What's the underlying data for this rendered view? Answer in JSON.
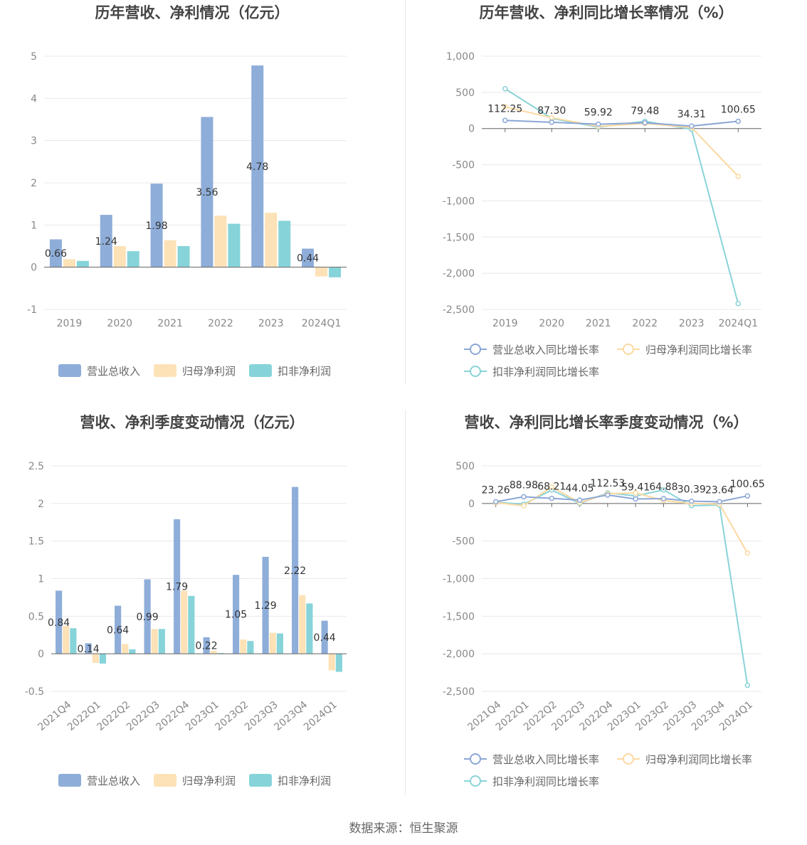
{
  "colors": {
    "revenue": "#8eadd9",
    "net_profit": "#fde2b7",
    "deducted_profit": "#86d4d9",
    "line_revenue": "#8ba7d6",
    "line_net": "#fcd9a1",
    "line_deducted": "#89d3d8"
  },
  "legend": {
    "revenue": "营业总收入",
    "net_profit": "归母净利润",
    "deducted_profit": "扣非净利润",
    "revenue_growth": "营业总收入同比增长率",
    "net_growth": "归母净利润同比增长率",
    "deducted_growth": "扣非净利润同比增长率"
  },
  "source": "数据来源：恒生聚源",
  "chart_data": [
    {
      "type": "bar",
      "title": "历年营收、净利情况（亿元）",
      "categories": [
        "2019",
        "2020",
        "2021",
        "2022",
        "2023",
        "2024Q1"
      ],
      "series": [
        {
          "name": "营业总收入",
          "values": [
            0.66,
            1.24,
            1.98,
            3.56,
            4.78,
            0.44
          ]
        },
        {
          "name": "归母净利润",
          "values": [
            0.19,
            0.5,
            0.64,
            1.22,
            1.29,
            -0.22
          ]
        },
        {
          "name": "扣非净利润",
          "values": [
            0.15,
            0.38,
            0.5,
            1.03,
            1.1,
            -0.24
          ]
        }
      ],
      "data_labels": [
        "0.66",
        "1.24",
        "1.98",
        "3.56",
        "4.78",
        "0.44"
      ],
      "yticks": [
        "5",
        "4",
        "3",
        "2",
        "1",
        "0",
        "-1"
      ],
      "ylim": [
        -1,
        5
      ],
      "grid": true,
      "legend_position": "bottom"
    },
    {
      "type": "line",
      "title": "历年营收、净利同比增长率情况（%）",
      "categories": [
        "2019",
        "2020",
        "2021",
        "2022",
        "2023",
        "2024Q1"
      ],
      "series": [
        {
          "name": "营业总收入同比增长率",
          "values": [
            112.25,
            87.3,
            59.92,
            79.48,
            34.31,
            100.65
          ]
        },
        {
          "name": "归母净利润同比增长率",
          "values": [
            300,
            150,
            30,
            70,
            15,
            -660
          ]
        },
        {
          "name": "扣非净利润同比增长率",
          "values": [
            550,
            140,
            20,
            100,
            -10,
            -2420
          ]
        }
      ],
      "data_labels": [
        "112.25",
        "87.30",
        "59.92",
        "79.48",
        "34.31",
        "100.65"
      ],
      "yticks": [
        "1,000",
        "500",
        "0",
        "-500",
        "-1,000",
        "-1,500",
        "-2,000",
        "-2,500"
      ],
      "ylim": [
        -2500,
        1000
      ],
      "grid": true,
      "legend_position": "bottom"
    },
    {
      "type": "bar",
      "title": "营收、净利季度变动情况（亿元）",
      "categories": [
        "2021Q4",
        "2022Q1",
        "2022Q2",
        "2022Q3",
        "2022Q4",
        "2023Q1",
        "2023Q2",
        "2023Q3",
        "2023Q4",
        "2024Q1"
      ],
      "series": [
        {
          "name": "营业总收入",
          "values": [
            0.84,
            0.14,
            0.64,
            0.99,
            1.79,
            0.22,
            1.05,
            1.29,
            2.22,
            0.44
          ]
        },
        {
          "name": "归母净利润",
          "values": [
            0.37,
            -0.12,
            0.13,
            0.33,
            0.84,
            0.04,
            0.19,
            0.28,
            0.78,
            -0.22
          ]
        },
        {
          "name": "扣非净利润",
          "values": [
            0.34,
            -0.13,
            0.06,
            0.33,
            0.77,
            0.01,
            0.17,
            0.27,
            0.67,
            -0.24
          ]
        }
      ],
      "data_labels": [
        "0.84",
        "0.14",
        "0.64",
        "0.99",
        "1.79",
        "0.22",
        "1.05",
        "1.29",
        "2.22",
        "0.44"
      ],
      "yticks": [
        "2.5",
        "2",
        "1.5",
        "1",
        "0.5",
        "0",
        "-0.5"
      ],
      "ylim": [
        -0.5,
        2.5
      ],
      "grid": true,
      "legend_position": "bottom"
    },
    {
      "type": "line",
      "title": "营收、净利同比增长率季度变动情况（%）",
      "categories": [
        "2021Q4",
        "2022Q1",
        "2022Q2",
        "2022Q3",
        "2022Q4",
        "2023Q1",
        "2023Q2",
        "2023Q3",
        "2023Q4",
        "2024Q1"
      ],
      "series": [
        {
          "name": "营业总收入同比增长率",
          "values": [
            23.26,
            88.98,
            68.21,
            44.05,
            112.53,
            59.41,
            64.88,
            30.39,
            23.64,
            100.65
          ]
        },
        {
          "name": "归母净利润同比增长率",
          "values": [
            10,
            -30,
            220,
            10,
            130,
            140,
            40,
            0,
            -10,
            -660
          ]
        },
        {
          "name": "扣非净利润同比增长率",
          "values": [
            15,
            -10,
            180,
            0,
            140,
            100,
            180,
            -30,
            -20,
            -2420
          ]
        }
      ],
      "data_labels": [
        "23.26",
        "88.98",
        "68.21",
        "44.05",
        "112.53",
        "59.41",
        "64.88",
        "30.39",
        "23.64",
        "100.65"
      ],
      "yticks": [
        "500",
        "0",
        "-500",
        "-1,000",
        "-1,500",
        "-2,000",
        "-2,500"
      ],
      "ylim": [
        -2500,
        500
      ],
      "grid": true,
      "legend_position": "bottom"
    }
  ]
}
